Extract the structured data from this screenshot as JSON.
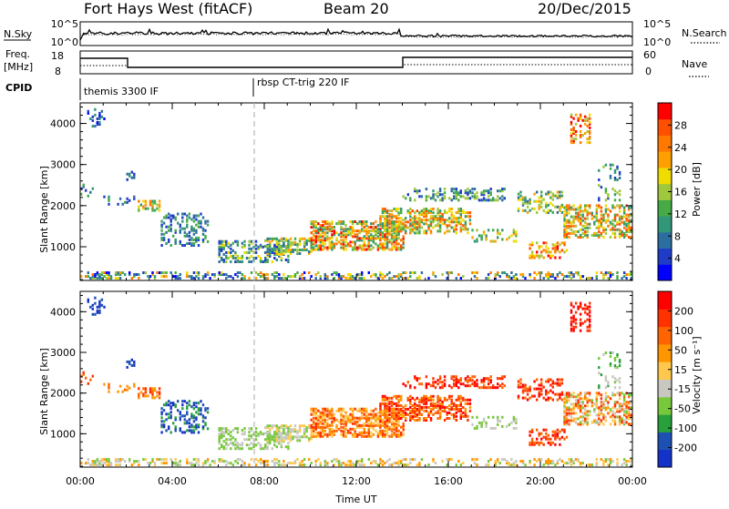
{
  "header": {
    "station": "Fort Hays West (fitACF)",
    "beam": "Beam 20",
    "date": "20/Dec/2015"
  },
  "panels": {
    "nsky": {
      "left_label": "N.Sky",
      "right_label": "N.Search",
      "left_ticks": [
        "10^5",
        "10^0"
      ],
      "right_ticks": [
        "10^5",
        "10^0"
      ]
    },
    "freq": {
      "left_label_1": "Freq.",
      "left_label_2": "[MHz]",
      "left_ticks": [
        "18",
        "8"
      ],
      "right_label": "Nave",
      "right_ticks": [
        "60",
        "0"
      ]
    },
    "cpid": {
      "label": "CPID",
      "modes": [
        "themis 3300 IF",
        "rbsp CT-trig 220 IF"
      ]
    }
  },
  "chart_data": [
    {
      "type": "heatmap",
      "name": "power",
      "ylabel": "Slant Range [km]",
      "yticks": [
        "4000",
        "3000",
        "2000",
        "1000"
      ],
      "ylim": [
        180,
        4500
      ],
      "colorbar_label": "Power [dB]",
      "colorbar_ticks": [
        "28",
        "24",
        "20",
        "16",
        "12",
        "8",
        "4"
      ],
      "colors": [
        "#0000ff",
        "#1e3cc8",
        "#2d6ea0",
        "#329678",
        "#46aa46",
        "#a0c83c",
        "#f0dc00",
        "#ffa000",
        "#ff7800",
        "#ff5000",
        "#ff0000"
      ],
      "xticks": [
        "00:00",
        "04:00",
        "08:00",
        "12:00",
        "16:00",
        "20:00",
        "00:00"
      ]
    },
    {
      "type": "heatmap",
      "name": "velocity",
      "ylabel": "Slant Range [km]",
      "yticks": [
        "4000",
        "3000",
        "2000",
        "1000"
      ],
      "ylim": [
        180,
        4500
      ],
      "colorbar_label": "Velocity [m s⁻¹]",
      "colorbar_ticks": [
        "200",
        "100",
        "50",
        "15",
        "-15",
        "-50",
        "-100",
        "-200"
      ],
      "colors": [
        "#1432c8",
        "#1e50b4",
        "#28a03c",
        "#78c83c",
        "#c8c8c0",
        "#ffc84c",
        "#ff9600",
        "#ff6400",
        "#ff3200",
        "#ff0000"
      ],
      "xticks": [
        "00:00",
        "04:00",
        "08:00",
        "12:00",
        "16:00",
        "20:00",
        "00:00"
      ],
      "xlabel": "Time UT"
    }
  ]
}
